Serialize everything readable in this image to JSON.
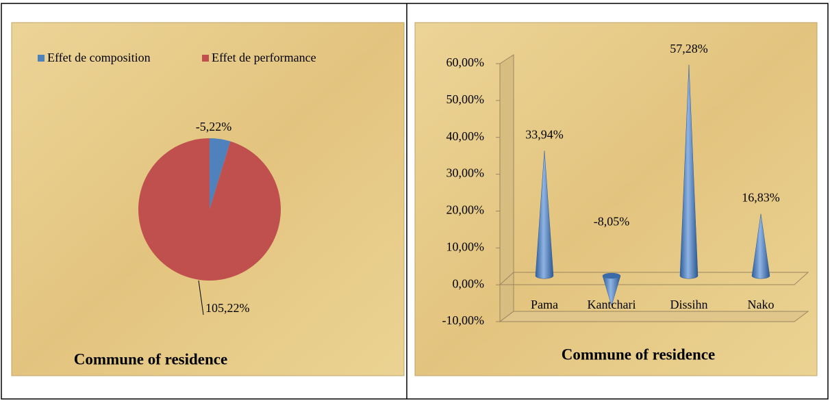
{
  "chart_data": [
    {
      "type": "pie",
      "title": "Commune of residence",
      "categories": [
        "Effet de composition",
        "Effet de performance"
      ],
      "values": [
        -5.22,
        105.22
      ],
      "value_labels": [
        "-5,22%",
        "105,22%"
      ],
      "colors": [
        "#4f81bd",
        "#c0504d"
      ],
      "legend": "top"
    },
    {
      "type": "cone",
      "title": "Commune of residence",
      "categories": [
        "Pama",
        "Kantchari",
        "Dissihn",
        "Nako"
      ],
      "values": [
        33.94,
        -8.05,
        57.28,
        16.83
      ],
      "value_labels": [
        "33,94%",
        "-8,05%",
        "57,28%",
        "16,83%"
      ],
      "color": "#4f81bd",
      "ylim": [
        -10,
        60
      ],
      "yticks": [
        {
          "value": -10,
          "label": "-10,00%"
        },
        {
          "value": 0,
          "label": "0,00%"
        },
        {
          "value": 10,
          "label": "10,00%"
        },
        {
          "value": 20,
          "label": "20,00%"
        },
        {
          "value": 30,
          "label": "30,00%"
        },
        {
          "value": 40,
          "label": "40,00%"
        },
        {
          "value": 50,
          "label": "50,00%"
        },
        {
          "value": 60,
          "label": "60,00%"
        }
      ]
    }
  ]
}
